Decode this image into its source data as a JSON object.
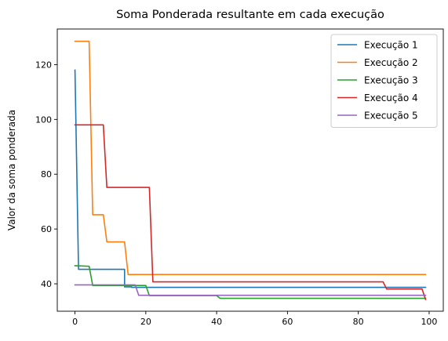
{
  "chart_data": {
    "type": "line",
    "title": "Soma Ponderada resultante em cada execução",
    "xlabel": "",
    "ylabel": "Valor da soma ponderada",
    "xlim": [
      -5,
      104
    ],
    "ylim": [
      30,
      133
    ],
    "xticks": [
      0,
      20,
      40,
      60,
      80,
      100
    ],
    "yticks": [
      40,
      60,
      80,
      100,
      120
    ],
    "grid": false,
    "legend_position": "upper right",
    "series": [
      {
        "name": "Execução 1",
        "color": "#1f77b4",
        "x": [
          0,
          1,
          1,
          13,
          14,
          14,
          16,
          16,
          99
        ],
        "y": [
          118,
          45.3,
          45.3,
          45.3,
          45.3,
          38.9,
          38.9,
          38.7,
          38.7
        ]
      },
      {
        "name": "Execução 2",
        "color": "#ff7f0e",
        "x": [
          0,
          4,
          5,
          8,
          9,
          14,
          15,
          99
        ],
        "y": [
          128.5,
          128.5,
          65.2,
          65.2,
          55.3,
          55.3,
          43.4,
          43.4
        ]
      },
      {
        "name": "Execução 3",
        "color": "#2ca02c",
        "x": [
          0,
          4,
          5,
          10,
          20,
          21,
          40,
          41,
          99
        ],
        "y": [
          46.6,
          46.4,
          39.4,
          39.4,
          39.4,
          35.7,
          35.7,
          34.7,
          34.7
        ]
      },
      {
        "name": "Execução 4",
        "color": "#d62728",
        "x": [
          0,
          8,
          9,
          21,
          22,
          87,
          88,
          98,
          99
        ],
        "y": [
          98,
          98,
          75.2,
          75.2,
          40.7,
          40.7,
          38.1,
          38.1,
          34.3
        ]
      },
      {
        "name": "Execução 5",
        "color": "#9467bd",
        "x": [
          0,
          8,
          17,
          18,
          99
        ],
        "y": [
          39.6,
          39.6,
          39.6,
          35.8,
          35.8
        ]
      }
    ]
  }
}
